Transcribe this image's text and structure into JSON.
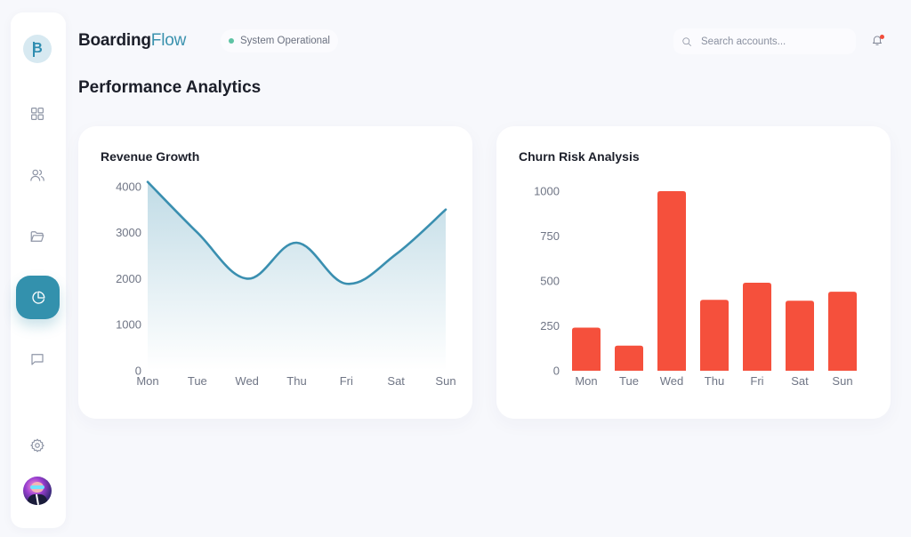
{
  "app": {
    "brand_part1": "Boarding",
    "brand_part2": "Flow",
    "logo_letter": "B",
    "status_text": "System Operational",
    "status_color": "#5ec3a4"
  },
  "search": {
    "placeholder": "Search accounts...",
    "value": ""
  },
  "notifications": {
    "has_unread": true,
    "badge_color": "#f14d3a"
  },
  "sidebar": {
    "items": [
      {
        "name": "dashboard",
        "icon": "grid-icon",
        "active": false
      },
      {
        "name": "users",
        "icon": "users-icon",
        "active": false
      },
      {
        "name": "files",
        "icon": "folder-open-icon",
        "active": false
      },
      {
        "name": "analytics",
        "icon": "pie-chart-icon",
        "active": true
      },
      {
        "name": "messages",
        "icon": "message-square-icon",
        "active": false
      }
    ],
    "bottom": [
      {
        "name": "settings",
        "icon": "gear-icon"
      },
      {
        "name": "profile",
        "icon": "avatar"
      }
    ],
    "accent_color": "#3391ad"
  },
  "page": {
    "title": "Performance Analytics"
  },
  "cards": {
    "revenue": {
      "title": "Revenue Growth"
    },
    "churn": {
      "title": "Churn Risk Analysis"
    }
  },
  "chart_data": [
    {
      "type": "area",
      "title": "Revenue Growth",
      "categories": [
        "Mon",
        "Tue",
        "Wed",
        "Thu",
        "Fri",
        "Sat",
        "Sun"
      ],
      "values": [
        4100,
        3000,
        2000,
        2780,
        1890,
        2530,
        3500
      ],
      "xlabel": "",
      "ylabel": "",
      "yticks": [
        0,
        1000,
        2000,
        3000,
        4000
      ],
      "ylim": [
        0,
        4100
      ],
      "grid": false,
      "legend": null,
      "color": "#3a8fb0"
    },
    {
      "type": "bar",
      "title": "Churn Risk Analysis",
      "categories": [
        "Mon",
        "Tue",
        "Wed",
        "Thu",
        "Fri",
        "Sat",
        "Sun"
      ],
      "values": [
        240,
        140,
        1000,
        395,
        490,
        390,
        440
      ],
      "xlabel": "",
      "ylabel": "",
      "yticks": [
        0,
        250,
        500,
        750,
        1000
      ],
      "ylim": [
        0,
        1000
      ],
      "grid": false,
      "legend": null,
      "color": "#f5503c"
    }
  ]
}
